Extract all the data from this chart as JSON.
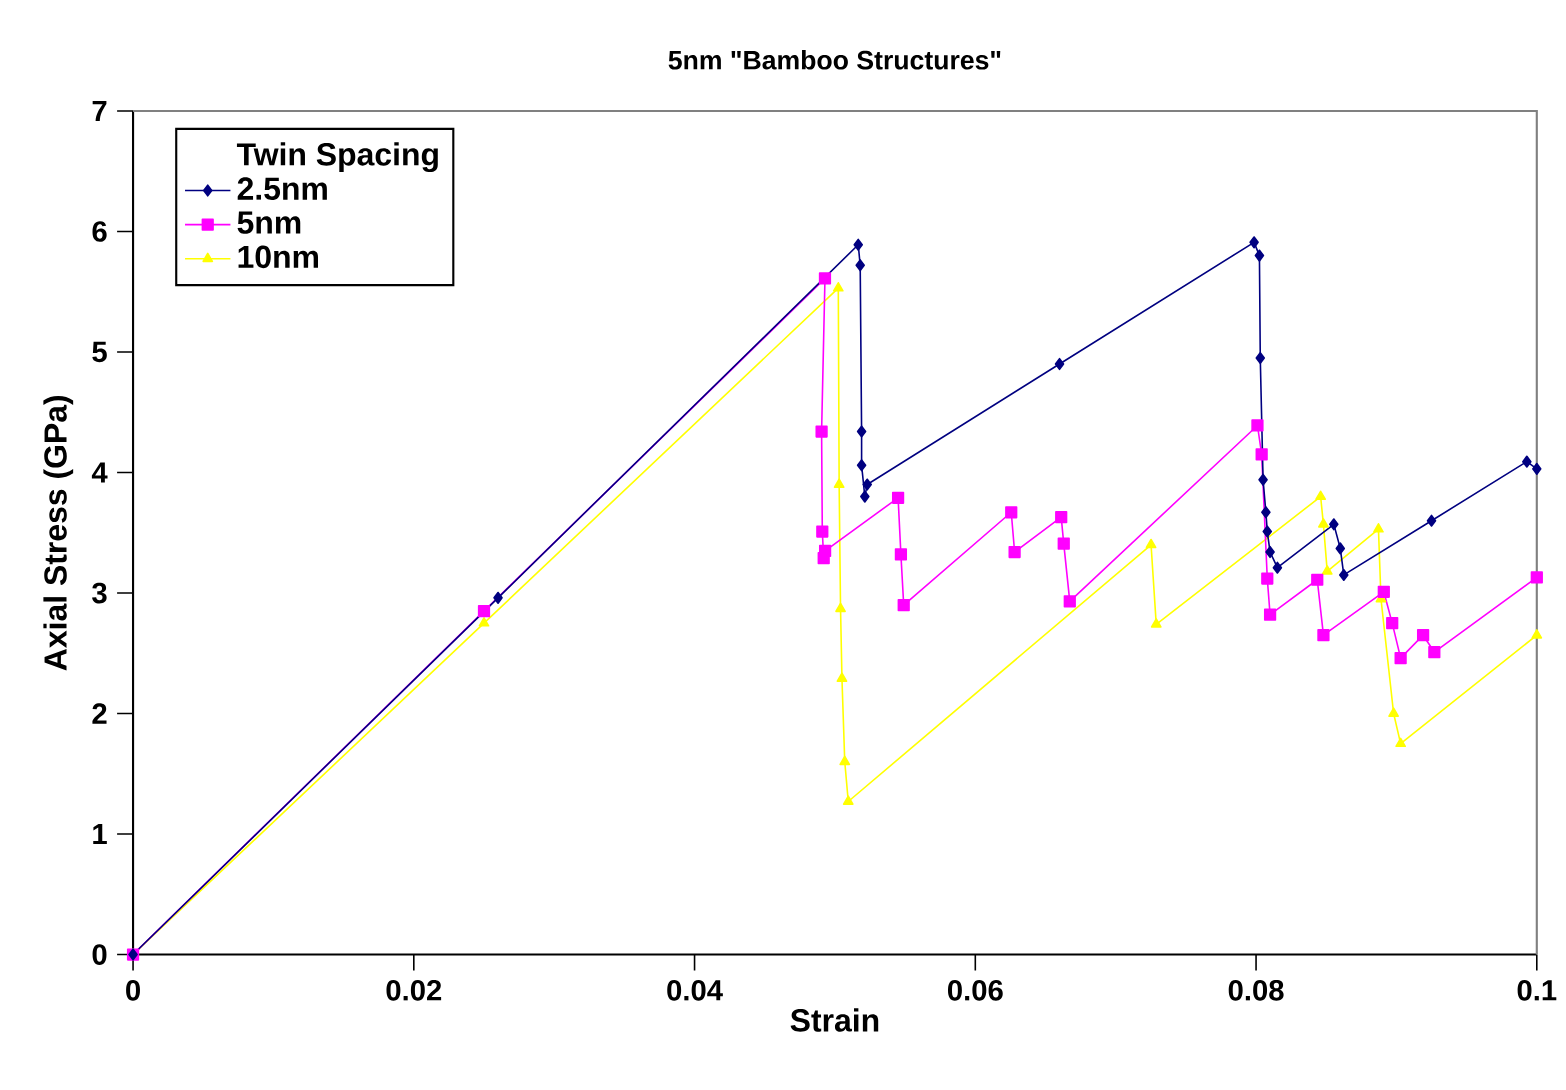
{
  "chart_data": {
    "type": "line",
    "title": "5nm \"Bamboo Structures\"",
    "xlabel": "Strain",
    "ylabel": "Axial Stress (GPa)",
    "legend_title": "Twin Spacing",
    "legend": "top left",
    "grid": false,
    "xlim": [
      0,
      0.1
    ],
    "ylim": [
      0,
      7
    ],
    "xticks": [
      0,
      0.02,
      0.04,
      0.06,
      0.08,
      0.1
    ],
    "yticks": [
      0,
      1,
      2,
      3,
      4,
      5,
      6,
      7
    ],
    "series": [
      {
        "name": "2.5nm",
        "color": "#000080",
        "marker": "diamond",
        "x": [
          0,
          0.026,
          0.05166,
          0.0518,
          0.0519,
          0.0519,
          0.05213,
          0.0523,
          0.066,
          0.07986,
          0.08024,
          0.0803,
          0.0805,
          0.0807,
          0.0808,
          0.081,
          0.08152,
          0.08554,
          0.086,
          0.08625,
          0.0925,
          0.09929,
          0.1
        ],
        "values": [
          0,
          2.96,
          5.89,
          5.72,
          4.34,
          4.06,
          3.8,
          3.9,
          4.9,
          5.91,
          5.8,
          4.95,
          3.94,
          3.67,
          3.51,
          3.34,
          3.21,
          3.57,
          3.37,
          3.15,
          3.6,
          4.09,
          4.03
        ]
      },
      {
        "name": "5nm",
        "color": "#ff00ff",
        "marker": "square",
        "x": [
          0,
          0.025,
          0.04929,
          0.04905,
          0.0491,
          0.0492,
          0.0493,
          0.0545,
          0.0547,
          0.0549,
          0.06256,
          0.0628,
          0.06612,
          0.0663,
          0.06673,
          0.0801,
          0.0804,
          0.0808,
          0.081,
          0.08436,
          0.0848,
          0.0891,
          0.0897,
          0.0903,
          0.0919,
          0.0927,
          0.1
        ],
        "values": [
          0,
          2.85,
          5.61,
          4.34,
          3.51,
          3.29,
          3.35,
          3.79,
          3.32,
          2.9,
          3.67,
          3.34,
          3.63,
          3.41,
          2.93,
          4.39,
          4.15,
          3.12,
          2.82,
          3.11,
          2.65,
          3.01,
          2.75,
          2.46,
          2.65,
          2.51,
          3.13
        ]
      },
      {
        "name": "10nm",
        "color": "#ffff00",
        "marker": "triangle",
        "x": [
          0,
          0.025,
          0.05024,
          0.0503,
          0.0504,
          0.0505,
          0.0507,
          0.05095,
          0.07252,
          0.07289,
          0.0846,
          0.0848,
          0.08507,
          0.08872,
          0.0889,
          0.0898,
          0.0903,
          0.1
        ],
        "values": [
          0,
          2.75,
          5.53,
          3.9,
          2.87,
          2.29,
          1.6,
          1.27,
          3.4,
          2.74,
          3.8,
          3.57,
          3.18,
          3.53,
          2.95,
          2.0,
          1.75,
          2.65
        ]
      }
    ]
  }
}
